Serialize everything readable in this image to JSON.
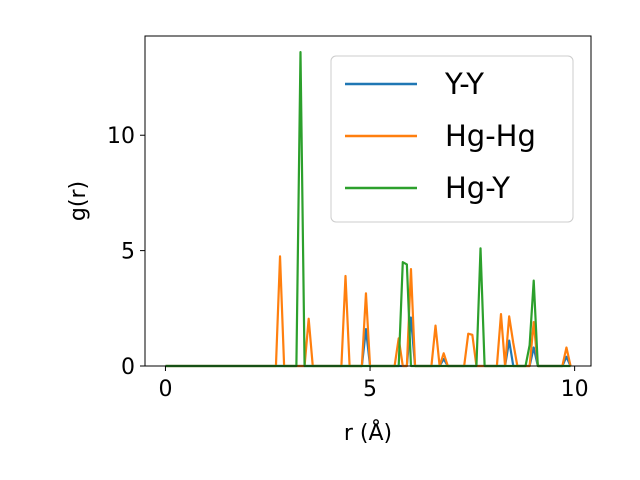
{
  "chart_data": {
    "type": "line",
    "title": "",
    "xlabel": "r (Å)",
    "ylabel": "g(r)",
    "xlim": [
      -0.5,
      10.4
    ],
    "ylim": [
      0,
      14.3
    ],
    "xticks": [
      0,
      5,
      10
    ],
    "yticks": [
      0,
      5,
      10
    ],
    "xtick_labels": [
      "0",
      "5",
      "10"
    ],
    "ytick_labels": [
      "0",
      "5",
      "10"
    ],
    "grid": false,
    "legend_position": "top-right",
    "series": [
      {
        "name": "Y-Y",
        "color": "#1f77b4",
        "points": [
          [
            0,
            0
          ],
          [
            4.8,
            0
          ],
          [
            4.9,
            1.6
          ],
          [
            5.0,
            0
          ],
          [
            5.9,
            0
          ],
          [
            6.0,
            2.1
          ],
          [
            6.1,
            0
          ],
          [
            6.7,
            0
          ],
          [
            6.8,
            0.3
          ],
          [
            6.9,
            0
          ],
          [
            8.3,
            0
          ],
          [
            8.4,
            1.1
          ],
          [
            8.5,
            0
          ],
          [
            8.9,
            0
          ],
          [
            9.0,
            0.8
          ],
          [
            9.1,
            0
          ],
          [
            9.7,
            0
          ],
          [
            9.8,
            0.4
          ],
          [
            9.9,
            0
          ]
        ]
      },
      {
        "name": "Hg-Hg",
        "color": "#ff7f0e",
        "points": [
          [
            0,
            0
          ],
          [
            2.7,
            0
          ],
          [
            2.8,
            4.75
          ],
          [
            2.9,
            0
          ],
          [
            3.4,
            0
          ],
          [
            3.5,
            2.05
          ],
          [
            3.6,
            0
          ],
          [
            4.3,
            0
          ],
          [
            4.4,
            3.9
          ],
          [
            4.5,
            0
          ],
          [
            4.8,
            0
          ],
          [
            4.9,
            3.15
          ],
          [
            5.0,
            0
          ],
          [
            5.6,
            0
          ],
          [
            5.7,
            1.2
          ],
          [
            5.8,
            0
          ],
          [
            5.9,
            0
          ],
          [
            6.0,
            4.2
          ],
          [
            6.1,
            0
          ],
          [
            6.5,
            0
          ],
          [
            6.6,
            1.75
          ],
          [
            6.7,
            0
          ],
          [
            6.8,
            0.55
          ],
          [
            6.9,
            0
          ],
          [
            7.3,
            0
          ],
          [
            7.4,
            1.4
          ],
          [
            7.5,
            1.35
          ],
          [
            7.6,
            0
          ],
          [
            8.1,
            0
          ],
          [
            8.2,
            2.25
          ],
          [
            8.3,
            0
          ],
          [
            8.4,
            2.15
          ],
          [
            8.5,
            1.0
          ],
          [
            8.6,
            0
          ],
          [
            8.9,
            0
          ],
          [
            9.0,
            1.9
          ],
          [
            9.1,
            0
          ],
          [
            9.7,
            0
          ],
          [
            9.8,
            0.8
          ],
          [
            9.9,
            0
          ]
        ]
      },
      {
        "name": "Hg-Y",
        "color": "#2ca02c",
        "points": [
          [
            0,
            0
          ],
          [
            3.2,
            0
          ],
          [
            3.3,
            13.6
          ],
          [
            3.4,
            0
          ],
          [
            5.7,
            0
          ],
          [
            5.8,
            4.5
          ],
          [
            5.9,
            4.4
          ],
          [
            6.0,
            0
          ],
          [
            7.6,
            0
          ],
          [
            7.7,
            5.1
          ],
          [
            7.8,
            0
          ],
          [
            8.8,
            0
          ],
          [
            8.9,
            0.9
          ],
          [
            9.0,
            3.7
          ],
          [
            9.1,
            0
          ],
          [
            9.9,
            0
          ]
        ]
      }
    ]
  }
}
